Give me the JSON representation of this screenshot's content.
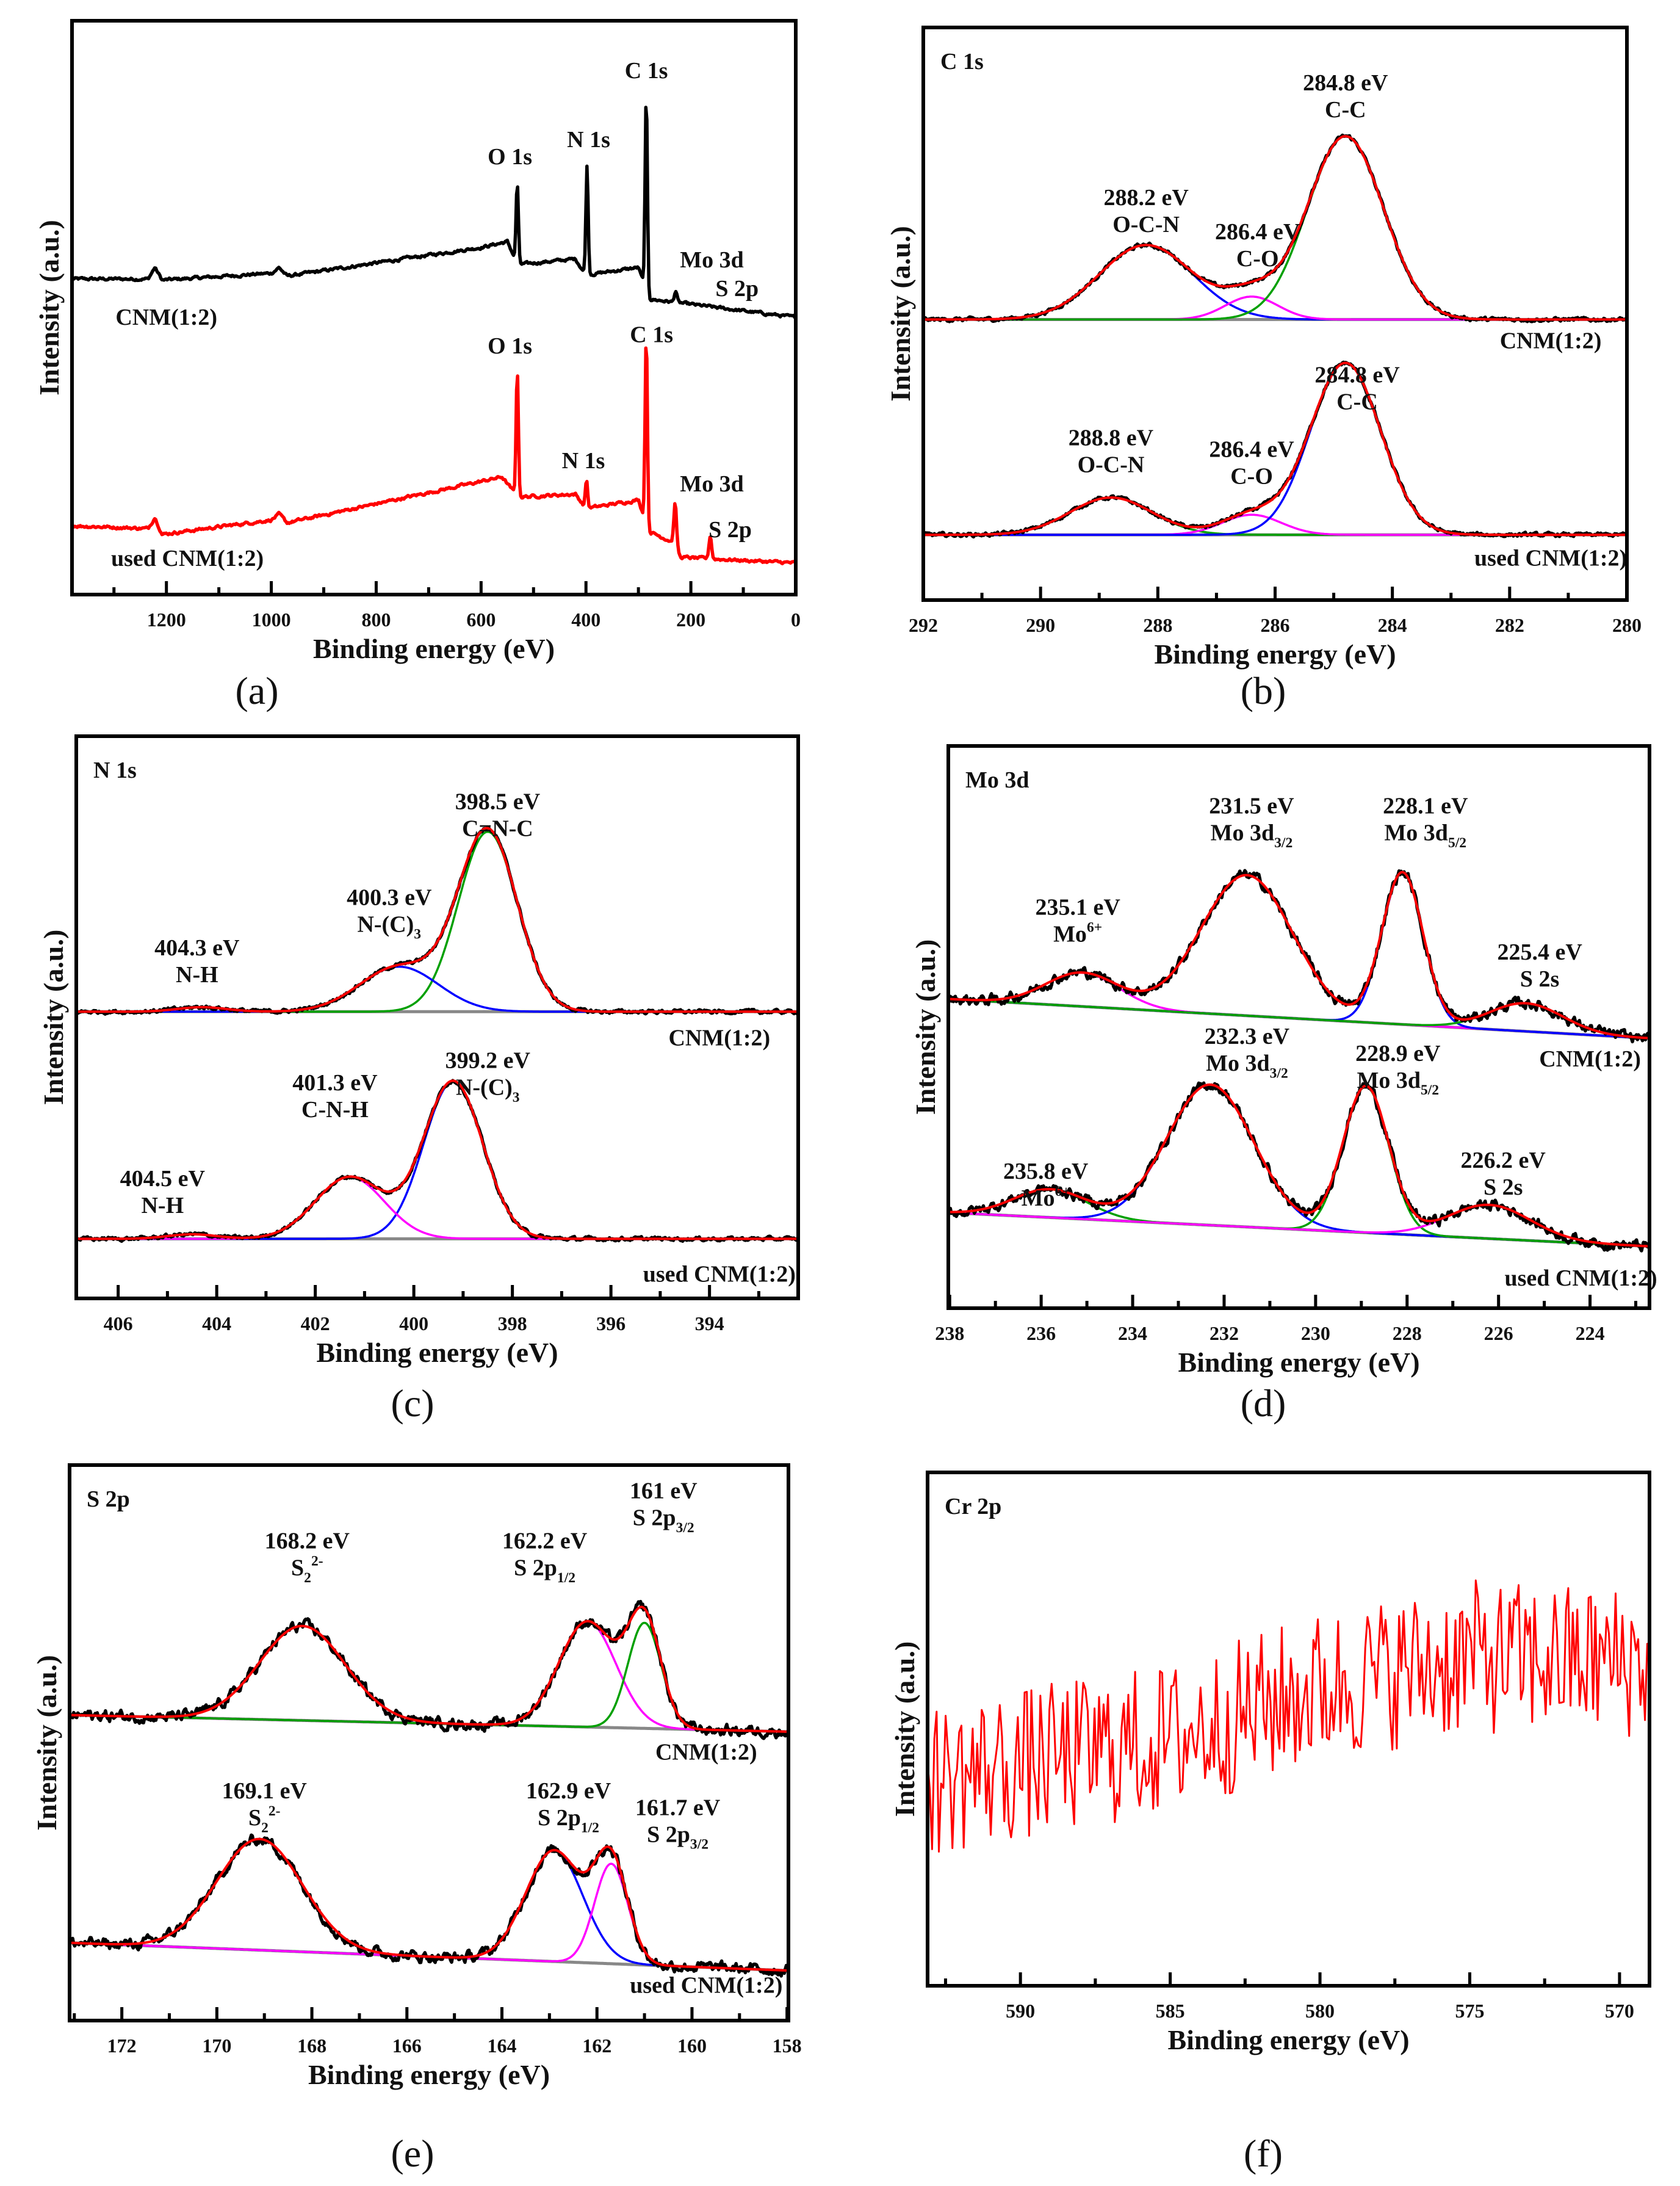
{
  "colors": {
    "fit": "#ff0000",
    "raw": "#000000",
    "baseline": "#888888",
    "green": "#00a000",
    "blue": "#0000ff",
    "magenta": "#ff00ff"
  },
  "chart_data": [
    {
      "id": "a",
      "type": "line",
      "letter": "(a)",
      "title": "",
      "xlabel": "Binding energy (eV)",
      "ylabel": "Intensity (a.u.)",
      "xlim": [
        1380,
        0
      ],
      "ylim": [
        0,
        100
      ],
      "xticks": [
        1200,
        1000,
        800,
        600,
        400,
        200,
        0
      ],
      "minor_step": 100,
      "series": [
        {
          "name": "CNM(1:2)",
          "raw_color": "#000000",
          "show_fit": false,
          "noise": 0.4,
          "baseline": [
            [
              1380,
              55
            ],
            [
              1235,
              55
            ],
            [
              1222,
              57
            ],
            [
              1208,
              54.8
            ],
            [
              1000,
              56
            ],
            [
              985,
              57
            ],
            [
              970,
              55.5
            ],
            [
              600,
              60.5
            ],
            [
              550,
              61.5
            ],
            [
              530,
              57.5
            ],
            [
              420,
              58.5
            ],
            [
              400,
              55.7
            ],
            [
              300,
              57
            ],
            [
              280,
              51.5
            ],
            [
              0,
              48.3
            ]
          ],
          "components": [
            {
              "center": 285,
              "amp": 34,
              "width": 2.2
            },
            {
              "center": 398,
              "amp": 19,
              "width": 2.2
            },
            {
              "center": 531,
              "amp": 14,
              "width": 2.2
            },
            {
              "center": 229,
              "amp": 2,
              "width": 2.5
            }
          ],
          "label": {
            "text": "CNM(1:2)",
            "x": 1200,
            "y": 47
          }
        },
        {
          "name": "used CNM(1:2)",
          "raw_color": "#ff0000",
          "show_fit": false,
          "noise": 0.4,
          "baseline": [
            [
              1380,
              12
            ],
            [
              1235,
              11.5
            ],
            [
              1222,
              13.5
            ],
            [
              1208,
              10.5
            ],
            [
              1000,
              13
            ],
            [
              985,
              14
            ],
            [
              970,
              12.5
            ],
            [
              560,
              20.5
            ],
            [
              530,
              17
            ],
            [
              420,
              17.5
            ],
            [
              400,
              15
            ],
            [
              300,
              16.5
            ],
            [
              280,
              11
            ],
            [
              230,
              9
            ],
            [
              220,
              6.5
            ],
            [
              0,
              5.5
            ]
          ],
          "components": [
            {
              "center": 531,
              "amp": 22,
              "width": 2.2
            },
            {
              "center": 285,
              "amp": 33,
              "width": 2.2
            },
            {
              "center": 399,
              "amp": 5,
              "width": 2.2
            },
            {
              "center": 230,
              "amp": 7,
              "width": 2.5
            },
            {
              "center": 163,
              "amp": 4,
              "width": 2.5
            }
          ],
          "label": {
            "text": "used CNM(1:2)",
            "x": 1160,
            "y": 5
          }
        }
      ],
      "annotations": [
        {
          "lines": [
            "C 1s"
          ],
          "x": 285,
          "y": 90
        },
        {
          "lines": [
            "O 1s"
          ],
          "x": 545,
          "y": 75
        },
        {
          "lines": [
            "N 1s"
          ],
          "x": 395,
          "y": 78
        },
        {
          "lines": [
            "Mo 3d"
          ],
          "x": 160,
          "y": 57
        },
        {
          "lines": [
            "S 2p"
          ],
          "x": 112,
          "y": 52
        },
        {
          "lines": [
            "O 1s"
          ],
          "x": 545,
          "y": 42
        },
        {
          "lines": [
            "C 1s"
          ],
          "x": 275,
          "y": 44
        },
        {
          "lines": [
            "N 1s"
          ],
          "x": 405,
          "y": 22
        },
        {
          "lines": [
            "Mo 3d"
          ],
          "x": 160,
          "y": 18
        },
        {
          "lines": [
            "S 2p"
          ],
          "x": 125,
          "y": 10
        }
      ]
    },
    {
      "id": "b",
      "type": "line",
      "letter": "(b)",
      "title": "C 1s",
      "xlabel": "Binding energy (eV)",
      "ylabel": "Intensity (a.u.)",
      "xlim": [
        292,
        280
      ],
      "ylim": [
        0,
        100
      ],
      "xticks": [
        292,
        290,
        288,
        286,
        284,
        282,
        280
      ],
      "minor_step": 1,
      "series": [
        {
          "name": "CNM(1:2)",
          "raw_color": "#000000",
          "show_fit": true,
          "noise": 0.5,
          "baseline": [
            [
              292,
              49
            ],
            [
              280,
              49
            ]
          ],
          "components": [
            {
              "center": 288.2,
              "amp": 13,
              "width": 0.8,
              "color": "#0000ff"
            },
            {
              "center": 286.4,
              "amp": 4,
              "width": 0.45,
              "color": "#ff00ff"
            },
            {
              "center": 284.8,
              "amp": 32,
              "width": 0.65,
              "color": "#00a000"
            }
          ],
          "label": {
            "text": "CNM(1:2)",
            "x": 281.3,
            "y": 44
          }
        },
        {
          "name": "used CNM(1:2)",
          "raw_color": "#000000",
          "show_fit": true,
          "noise": 0.5,
          "baseline": [
            [
              292,
              11.4
            ],
            [
              280,
              11.4
            ]
          ],
          "components": [
            {
              "center": 288.8,
              "amp": 6.5,
              "width": 0.7,
              "color": "#00a000"
            },
            {
              "center": 286.4,
              "amp": 3.5,
              "width": 0.5,
              "color": "#ff00ff"
            },
            {
              "center": 284.8,
              "amp": 30,
              "width": 0.6,
              "color": "#0000ff"
            }
          ],
          "label": {
            "text": "used CNM(1:2)",
            "x": 281.3,
            "y": 6
          }
        }
      ],
      "annotations": [
        {
          "lines": [
            "288.2 eV",
            "O-C-N"
          ],
          "x": 288.2,
          "y": 69
        },
        {
          "lines": [
            "286.4 eV",
            "C-O"
          ],
          "x": 286.3,
          "y": 63
        },
        {
          "lines": [
            "284.8 eV",
            "C-C"
          ],
          "x": 284.8,
          "y": 89
        },
        {
          "lines": [
            "288.8 eV",
            "O-C-N"
          ],
          "x": 288.8,
          "y": 27
        },
        {
          "lines": [
            "286.4 eV",
            "C-O"
          ],
          "x": 286.4,
          "y": 25
        },
        {
          "lines": [
            "284.8 eV",
            "C-C"
          ],
          "x": 284.6,
          "y": 38
        }
      ]
    },
    {
      "id": "c",
      "type": "line",
      "letter": "(c)",
      "title": "N 1s",
      "xlabel": "Binding energy (eV)",
      "ylabel": "Intensity (a.u.)",
      "xlim": [
        406.85,
        392.2
      ],
      "ylim": [
        0,
        100
      ],
      "xticks": [
        406,
        404,
        402,
        400,
        398,
        396,
        394
      ],
      "minor_step": 1,
      "series": [
        {
          "name": "CNM(1:2)",
          "raw_color": "#000000",
          "show_fit": true,
          "noise": 0.5,
          "baseline": [
            [
              406.85,
              51
            ],
            [
              392.2,
              51
            ]
          ],
          "components": [
            {
              "center": 398.5,
              "amp": 32,
              "width": 0.6,
              "color": "#00a000"
            },
            {
              "center": 400.3,
              "amp": 8,
              "width": 0.8,
              "color": "#0000ff"
            },
            {
              "center": 404.3,
              "amp": 0.8,
              "width": 0.5
            }
          ],
          "label": {
            "text": "CNM(1:2)",
            "x": 393.8,
            "y": 45
          }
        },
        {
          "name": "used CNM(1:2)",
          "raw_color": "#000000",
          "show_fit": true,
          "noise": 0.5,
          "baseline": [
            [
              406.85,
              10.6
            ],
            [
              392.2,
              10.6
            ]
          ],
          "components": [
            {
              "center": 399.2,
              "amp": 28,
              "width": 0.6,
              "color": "#0000ff"
            },
            {
              "center": 401.3,
              "amp": 11,
              "width": 0.7,
              "color": "#ff00ff"
            },
            {
              "center": 404.5,
              "amp": 0.8,
              "width": 0.5
            }
          ],
          "label": {
            "text": "used CNM(1:2)",
            "x": 393.8,
            "y": 3
          }
        }
      ],
      "annotations": [
        {
          "lines": [
            "398.5 eV",
            "C=N-C"
          ],
          "x": 398.3,
          "y": 87
        },
        {
          "lines": [
            "400.3 eV",
            "N-(C)_{3}"
          ],
          "x": 400.5,
          "y": 70
        },
        {
          "lines": [
            "404.3 eV",
            "N-H"
          ],
          "x": 404.4,
          "y": 61
        },
        {
          "lines": [
            "399.2 eV",
            "N-(C)_{3}"
          ],
          "x": 398.5,
          "y": 41
        },
        {
          "lines": [
            "401.3 eV",
            "C-N-H"
          ],
          "x": 401.6,
          "y": 37
        },
        {
          "lines": [
            "404.5 eV",
            "N-H"
          ],
          "x": 405.1,
          "y": 20
        }
      ]
    },
    {
      "id": "d",
      "type": "line",
      "letter": "(d)",
      "title": "Mo 3d",
      "xlabel": "Binding energy (eV)",
      "ylabel": "Intensity (a.u.)",
      "xlim": [
        238.03,
        222.7
      ],
      "ylim": [
        0,
        100
      ],
      "xticks": [
        238,
        236,
        234,
        232,
        230,
        228,
        226,
        224
      ],
      "minor_step": 1,
      "series": [
        {
          "name": "CNM(1:2)",
          "raw_color": "#000000",
          "show_fit": true,
          "noise": 1.4,
          "baseline": [
            [
              238.03,
              55
            ],
            [
              222.7,
              48
            ]
          ],
          "components": [
            {
              "center": 235.1,
              "amp": 6,
              "width": 0.8,
              "color": "#ff00ff"
            },
            {
              "center": 231.5,
              "amp": 25,
              "width": 1.0
            },
            {
              "center": 228.1,
              "amp": 27,
              "width": 0.45,
              "color": "#0000ff"
            },
            {
              "center": 225.4,
              "amp": 5,
              "width": 0.8,
              "color": "#00a000"
            }
          ],
          "label": {
            "text": "CNM(1:2)",
            "x": 224.0,
            "y": 43
          }
        },
        {
          "name": "used CNM(1:2)",
          "raw_color": "#000000",
          "show_fit": true,
          "noise": 1.4,
          "baseline": [
            [
              238.03,
              17
            ],
            [
              222.7,
              11
            ]
          ],
          "components": [
            {
              "center": 235.8,
              "amp": 5,
              "width": 0.8,
              "color": "#00a000"
            },
            {
              "center": 232.3,
              "amp": 25,
              "width": 0.95,
              "color": "#0000ff"
            },
            {
              "center": 228.9,
              "amp": 26,
              "width": 0.5,
              "color": "#00a000"
            },
            {
              "center": 226.2,
              "amp": 6,
              "width": 0.9,
              "color": "#ff00ff"
            }
          ],
          "label": {
            "text": "used CNM(1:2)",
            "x": 224.2,
            "y": 4
          }
        }
      ],
      "annotations": [
        {
          "lines": [
            "231.5 eV",
            "Mo 3d_{3/2}"
          ],
          "x": 231.4,
          "y": 88
        },
        {
          "lines": [
            "228.1 eV",
            "Mo 3d_{5/2}"
          ],
          "x": 227.6,
          "y": 88
        },
        {
          "lines": [
            "235.1 eV",
            "Mo^{6+}"
          ],
          "x": 235.2,
          "y": 70
        },
        {
          "lines": [
            "225.4 eV",
            "S 2s"
          ],
          "x": 225.1,
          "y": 62
        },
        {
          "lines": [
            "232.3 eV",
            "Mo 3d_{3/2}"
          ],
          "x": 231.5,
          "y": 47
        },
        {
          "lines": [
            "228.9 eV",
            "Mo 3d_{5/2}"
          ],
          "x": 228.2,
          "y": 44
        },
        {
          "lines": [
            "235.8 eV",
            "Mo^{6+}"
          ],
          "x": 235.9,
          "y": 23
        },
        {
          "lines": [
            "226.2 eV",
            "S 2s"
          ],
          "x": 225.9,
          "y": 25
        }
      ]
    },
    {
      "id": "e",
      "type": "line",
      "letter": "(e)",
      "title": "S 2p",
      "xlabel": "Binding energy (eV)",
      "ylabel": "Intensity (a.u.)",
      "xlim": [
        173.1,
        157.97
      ],
      "ylim": [
        0,
        100
      ],
      "xticks": [
        172,
        170,
        168,
        166,
        164,
        162,
        160,
        158
      ],
      "minor_step": 1,
      "series": [
        {
          "name": "CNM(1:2)",
          "raw_color": "#000000",
          "show_fit": true,
          "noise": 1.5,
          "baseline": [
            [
              173.1,
              55
            ],
            [
              157.97,
              52
            ]
          ],
          "components": [
            {
              "center": 168.2,
              "amp": 17,
              "width": 0.9
            },
            {
              "center": 162.2,
              "amp": 19,
              "width": 0.6,
              "color": "#ff00ff"
            },
            {
              "center": 161.0,
              "amp": 19,
              "width": 0.35,
              "color": "#00a000"
            }
          ],
          "label": {
            "text": "CNM(1:2)",
            "x": 159.7,
            "y": 47
          }
        },
        {
          "name": "used CNM(1:2)",
          "raw_color": "#000000",
          "show_fit": true,
          "noise": 1.5,
          "baseline": [
            [
              173.1,
              14
            ],
            [
              157.97,
              9
            ]
          ],
          "components": [
            {
              "center": 169.1,
              "amp": 20,
              "width": 0.9
            },
            {
              "center": 162.9,
              "amp": 20,
              "width": 0.6,
              "color": "#0000ff"
            },
            {
              "center": 161.7,
              "amp": 18,
              "width": 0.35,
              "color": "#ff00ff"
            }
          ],
          "label": {
            "text": "used CNM(1:2)",
            "x": 159.7,
            "y": 5
          }
        }
      ],
      "annotations": [
        {
          "lines": [
            "161 eV",
            "S 2p_{3/2}"
          ],
          "x": 160.6,
          "y": 94
        },
        {
          "lines": [
            "162.2 eV",
            "S 2p_{1/2}"
          ],
          "x": 163.1,
          "y": 85
        },
        {
          "lines": [
            "168.2 eV",
            "S_{2}^{2-}"
          ],
          "x": 168.1,
          "y": 85
        },
        {
          "lines": [
            "169.1 eV",
            "S_{2}^{2-}"
          ],
          "x": 169.0,
          "y": 40
        },
        {
          "lines": [
            "162.9 eV",
            "S 2p_{1/2}"
          ],
          "x": 162.6,
          "y": 40
        },
        {
          "lines": [
            "161.7 eV",
            "S 2p_{3/2}"
          ],
          "x": 160.3,
          "y": 37
        }
      ]
    },
    {
      "id": "f",
      "type": "line",
      "letter": "(f)",
      "title": "Cr 2p",
      "xlabel": "Binding energy (eV)",
      "ylabel": "Intensity (a.u.)",
      "xlim": [
        593.1,
        569.0
      ],
      "ylim": [
        0,
        100
      ],
      "xticks": [
        590,
        585,
        580,
        575,
        570
      ],
      "minor_step": 2.5,
      "series": [
        {
          "name": "Cr 2p",
          "raw_color": "#ff0000",
          "show_fit": false,
          "noise": 30,
          "spiky": true,
          "baseline": [
            [
              593.1,
              40
            ],
            [
              585,
              48
            ],
            [
              580,
              58
            ],
            [
              575,
              64
            ],
            [
              569,
              63
            ]
          ],
          "components": []
        }
      ],
      "annotations": []
    }
  ]
}
